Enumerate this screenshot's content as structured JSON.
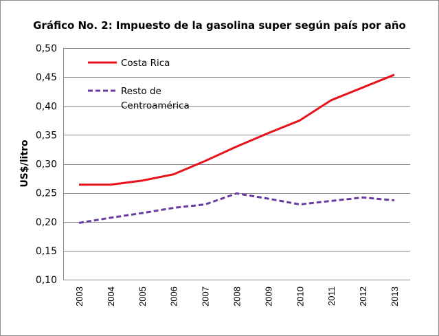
{
  "chart_data": {
    "type": "line",
    "title": "Gráfico No. 2: Impuesto de la gasolina super según país por año",
    "xlabel": "",
    "ylabel": "US$/litro",
    "categories": [
      "2003",
      "2004",
      "2005",
      "2006",
      "2007",
      "2008",
      "2009",
      "2010",
      "2011",
      "2012",
      "2013"
    ],
    "ylim": [
      0.1,
      0.5
    ],
    "yticks": [
      "0,10",
      "0,15",
      "0,20",
      "0,25",
      "0,30",
      "0,35",
      "0,40",
      "0,45",
      "0,50"
    ],
    "ytick_values": [
      0.1,
      0.15,
      0.2,
      0.25,
      0.3,
      0.35,
      0.4,
      0.45,
      0.5
    ],
    "grid": true,
    "legend_position": "top-left",
    "series": [
      {
        "name": "Costa Rica",
        "legend_lines": [
          "Costa Rica"
        ],
        "color": "#e8111b",
        "style": "solid",
        "values": [
          0.264,
          0.264,
          0.271,
          0.282,
          0.305,
          0.33,
          0.353,
          0.375,
          0.41,
          0.432,
          0.454
        ]
      },
      {
        "name": "Resto de Centroamérica",
        "legend_lines": [
          "Resto de",
          "Centroamérica"
        ],
        "color": "#6a3aa0",
        "style": "dashed",
        "values": [
          0.198,
          0.207,
          0.215,
          0.224,
          0.23,
          0.249,
          0.24,
          0.23,
          0.236,
          0.242,
          0.237
        ]
      }
    ]
  }
}
